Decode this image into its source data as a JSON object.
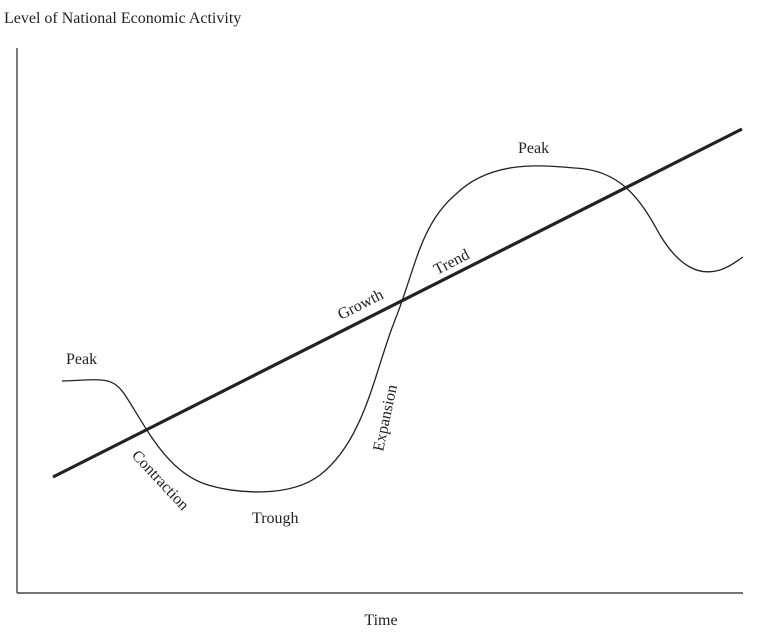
{
  "axes": {
    "y_label": "Level of National Economic Activity",
    "x_label": "Time"
  },
  "labels": {
    "peak_left": "Peak",
    "contraction": "Contraction",
    "trough": "Trough",
    "expansion": "Expansion",
    "growth": "Growth",
    "trend": "Trend",
    "peak_right": "Peak"
  },
  "colors": {
    "line": "#222222",
    "background": "#ffffff"
  }
}
